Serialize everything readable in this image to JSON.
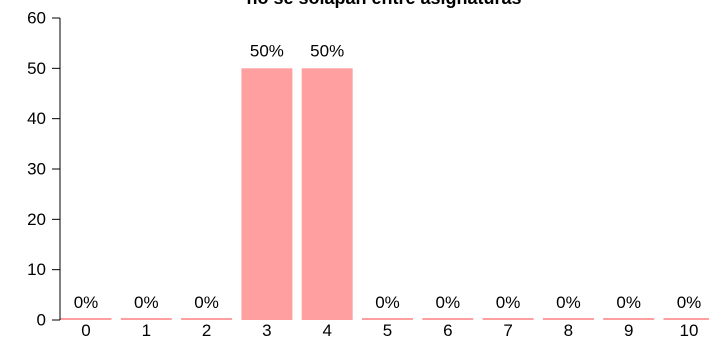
{
  "chart_data": {
    "type": "bar",
    "title": "no se solapan entre asignaturas",
    "categories": [
      "0",
      "1",
      "2",
      "3",
      "4",
      "5",
      "6",
      "7",
      "8",
      "9",
      "10"
    ],
    "values": [
      0,
      0,
      0,
      50,
      50,
      0,
      0,
      0,
      0,
      0,
      0
    ],
    "data_labels": [
      "0%",
      "0%",
      "0%",
      "50%",
      "50%",
      "0%",
      "0%",
      "0%",
      "0%",
      "0%",
      "0%"
    ],
    "xlabel": "",
    "ylabel": "",
    "ylim": [
      0,
      60
    ],
    "yticks": [
      0,
      10,
      20,
      30,
      40,
      50,
      60
    ],
    "grid": false,
    "legend": "none",
    "bar_color": "#ff9f9f",
    "text_color": "#000000"
  }
}
